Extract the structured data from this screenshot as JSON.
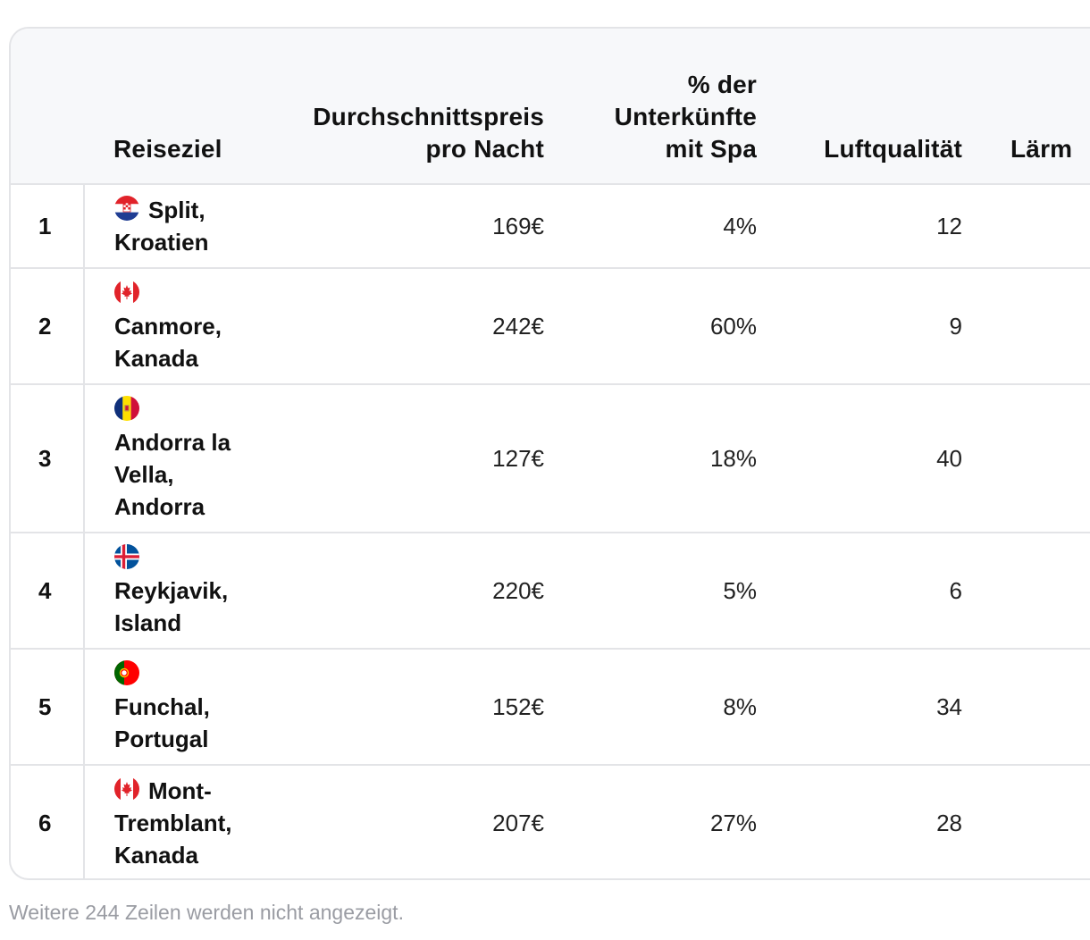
{
  "table": {
    "headers": {
      "rank": "",
      "destination": "Reiseziel",
      "price": [
        "Durchschnittspreis",
        "pro Nacht"
      ],
      "spa": [
        "% der",
        "Unterkünfte",
        "mit Spa"
      ],
      "air": "Luftqualität",
      "noise": "Lärm"
    },
    "rows": [
      {
        "rank": "1",
        "flag": "croatia-flag-icon",
        "dest_lines": [
          "Split,",
          "Kroatien"
        ],
        "flag_inline": true,
        "price": "169€",
        "spa": "4%",
        "air": "12"
      },
      {
        "rank": "2",
        "flag": "canada-flag-icon",
        "dest_lines": [
          "Canmore,",
          "Kanada"
        ],
        "flag_inline": false,
        "price": "242€",
        "spa": "60%",
        "air": "9"
      },
      {
        "rank": "3",
        "flag": "andorra-flag-icon",
        "dest_lines": [
          "Andorra la",
          "Vella,",
          "Andorra"
        ],
        "flag_inline": false,
        "price": "127€",
        "spa": "18%",
        "air": "40"
      },
      {
        "rank": "4",
        "flag": "iceland-flag-icon",
        "dest_lines": [
          "Reykjavik,",
          "Island"
        ],
        "flag_inline": false,
        "price": "220€",
        "spa": "5%",
        "air": "6"
      },
      {
        "rank": "5",
        "flag": "portugal-flag-icon",
        "dest_lines": [
          "Funchal,",
          "Portugal"
        ],
        "flag_inline": false,
        "price": "152€",
        "spa": "8%",
        "air": "34"
      },
      {
        "rank": "6",
        "flag": "canada-flag-icon",
        "dest_lines": [
          "Mont-",
          "Tremblant,",
          "Kanada"
        ],
        "flag_inline": true,
        "price": "207€",
        "spa": "27%",
        "air": "28"
      }
    ]
  },
  "footer": {
    "note": "Weitere 244 Zeilen werden nicht angezeigt."
  }
}
